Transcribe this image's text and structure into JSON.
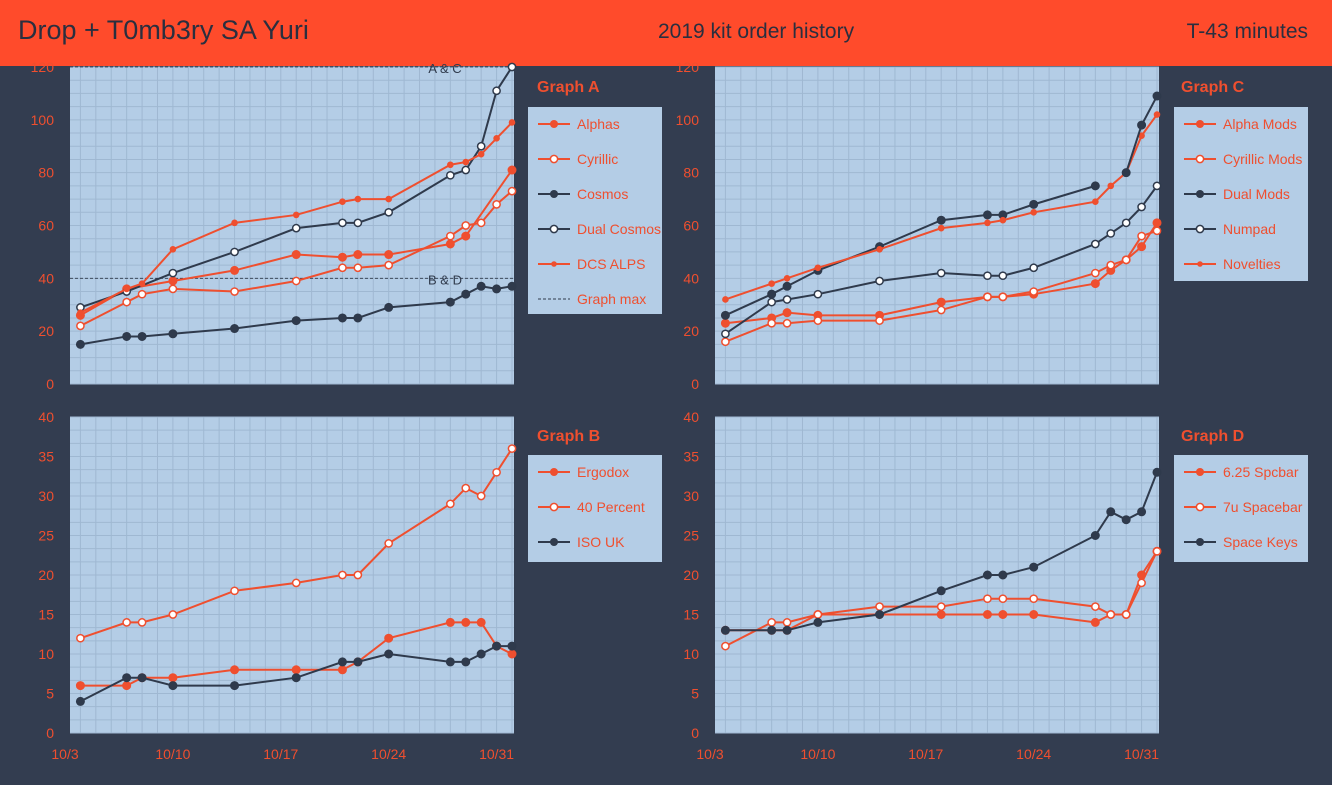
{
  "header": {
    "title": "Drop + T0mb3ry SA Yuri",
    "subtitle": "2019 kit order history",
    "countdown": "T-43 minutes"
  },
  "colors": {
    "background": "#333d50",
    "plot_bg": "#b4cde6",
    "header_bg": "#ff4b2b",
    "accent": "#ef4f2f",
    "dark": "#2f3a4c",
    "tick_text": "#ef4f2f"
  },
  "chart_data": [
    {
      "type": "line",
      "title": "Graph A",
      "x_type": "date",
      "x_ticks": [
        "10/3",
        "10/10",
        "10/17",
        "10/24",
        "10/31"
      ],
      "xlim": [
        "10/3",
        "11/1"
      ],
      "ylim": [
        0,
        120
      ],
      "y_ticks": [
        0,
        20,
        40,
        60,
        80,
        100,
        120
      ],
      "grid": true,
      "legend_position": "right",
      "reference_lines": [
        {
          "y": 120,
          "label": "A & C"
        },
        {
          "y": 40,
          "label": "B & D"
        }
      ],
      "series": [
        {
          "name": "Alphas",
          "color": "#ef4f2f",
          "marker": "filled",
          "x": [
            "10/4",
            "10/7",
            "10/10",
            "10/14",
            "10/18",
            "10/21",
            "10/22",
            "10/24",
            "10/28",
            "10/29",
            "11/1"
          ],
          "y": [
            26,
            36,
            39,
            43,
            49,
            48,
            49,
            49,
            53,
            56,
            81
          ]
        },
        {
          "name": "Cyrillic",
          "color": "#ef4f2f",
          "marker": "hollow",
          "x": [
            "10/4",
            "10/7",
            "10/8",
            "10/10",
            "10/14",
            "10/18",
            "10/21",
            "10/22",
            "10/24",
            "10/28",
            "10/29",
            "10/30",
            "10/31",
            "11/1"
          ],
          "y": [
            22,
            31,
            34,
            36,
            35,
            39,
            44,
            44,
            45,
            56,
            60,
            61,
            68,
            73
          ]
        },
        {
          "name": "Cosmos",
          "color": "#2f3a4c",
          "marker": "filled",
          "x": [
            "10/4",
            "10/7",
            "10/8",
            "10/10",
            "10/14",
            "10/18",
            "10/21",
            "10/22",
            "10/24",
            "10/28",
            "10/29",
            "10/30",
            "10/31",
            "11/1"
          ],
          "y": [
            15,
            18,
            18,
            19,
            21,
            24,
            25,
            25,
            29,
            31,
            34,
            37,
            36,
            37
          ]
        },
        {
          "name": "Dual Cosmos",
          "color": "#2f3a4c",
          "marker": "hollow",
          "x": [
            "10/4",
            "10/7",
            "10/10",
            "10/14",
            "10/18",
            "10/21",
            "10/22",
            "10/24",
            "10/28",
            "10/29",
            "10/30",
            "10/31",
            "11/1"
          ],
          "y": [
            29,
            35,
            42,
            50,
            59,
            61,
            61,
            65,
            79,
            81,
            90,
            111,
            120
          ]
        },
        {
          "name": "DCS ALPS",
          "color": "#ef4f2f",
          "marker": "dot",
          "x": [
            "10/4",
            "10/7",
            "10/8",
            "10/10",
            "10/14",
            "10/18",
            "10/21",
            "10/22",
            "10/24",
            "10/28",
            "10/29",
            "10/30",
            "10/31",
            "11/1"
          ],
          "y": [
            27,
            36,
            38,
            51,
            61,
            64,
            69,
            70,
            70,
            83,
            84,
            87,
            93,
            99
          ]
        },
        {
          "name": "Graph max",
          "color": "#2f3a4c",
          "marker": "none",
          "dashed": true,
          "x": [],
          "y": []
        }
      ]
    },
    {
      "type": "line",
      "title": "Graph C",
      "x_type": "date",
      "x_ticks": [
        "10/3",
        "10/10",
        "10/17",
        "10/24",
        "10/31"
      ],
      "xlim": [
        "10/3",
        "11/1"
      ],
      "ylim": [
        0,
        120
      ],
      "y_ticks": [
        0,
        20,
        40,
        60,
        80,
        100,
        120
      ],
      "grid": true,
      "legend_position": "right",
      "series": [
        {
          "name": "Alpha Mods",
          "color": "#ef4f2f",
          "marker": "filled",
          "x": [
            "10/4",
            "10/7",
            "10/8",
            "10/10",
            "10/14",
            "10/18",
            "10/21",
            "10/22",
            "10/24",
            "10/28",
            "10/29",
            "10/30",
            "10/31",
            "11/1"
          ],
          "y": [
            23,
            25,
            27,
            26,
            26,
            31,
            33,
            33,
            34,
            38,
            43,
            47,
            52,
            61
          ]
        },
        {
          "name": "Cyrillic Mods",
          "color": "#ef4f2f",
          "marker": "hollow",
          "x": [
            "10/4",
            "10/7",
            "10/8",
            "10/10",
            "10/14",
            "10/18",
            "10/21",
            "10/22",
            "10/24",
            "10/28",
            "10/29",
            "10/30",
            "10/31",
            "11/1"
          ],
          "y": [
            16,
            23,
            23,
            24,
            24,
            28,
            33,
            33,
            35,
            42,
            45,
            47,
            56,
            58
          ]
        },
        {
          "name": "Dual Mods",
          "color": "#2f3a4c",
          "marker": "filled",
          "x": [
            "10/4",
            "10/7",
            "10/8",
            "10/10",
            "10/14",
            "10/18",
            "10/21",
            "10/22",
            "10/24",
            "10/28"
          ],
          "y": [
            26,
            34,
            37,
            43,
            52,
            62,
            64,
            64,
            68,
            75
          ]
        },
        {
          "name": "Numpad",
          "color": "#2f3a4c",
          "marker": "hollow",
          "x": [
            "10/4",
            "10/7",
            "10/8",
            "10/10",
            "10/14",
            "10/18",
            "10/21",
            "10/22",
            "10/24",
            "10/28",
            "10/29",
            "10/30",
            "10/31",
            "11/1"
          ],
          "y": [
            19,
            31,
            32,
            34,
            39,
            42,
            41,
            41,
            44,
            53,
            57,
            61,
            67,
            75
          ]
        },
        {
          "name": "Novelties",
          "color": "#ef4f2f",
          "marker": "dot",
          "x": [
            "10/4",
            "10/7",
            "10/8",
            "10/10",
            "10/14",
            "10/18",
            "10/21",
            "10/22",
            "10/24",
            "10/28",
            "10/29",
            "10/30",
            "10/31",
            "11/1"
          ],
          "y": [
            32,
            38,
            40,
            44,
            51,
            59,
            61,
            62,
            65,
            69,
            75,
            80,
            94,
            102
          ]
        },
        {
          "name": "",
          "color": "#2f3a4c",
          "marker": "filled",
          "x": [
            "10/30",
            "10/31",
            "11/1"
          ],
          "y": [
            80,
            98,
            109
          ]
        }
      ]
    },
    {
      "type": "line",
      "title": "Graph B",
      "x_type": "date",
      "x_ticks": [
        "10/3",
        "10/10",
        "10/17",
        "10/24",
        "10/31"
      ],
      "xlim": [
        "10/3",
        "11/1"
      ],
      "ylim": [
        0,
        40
      ],
      "y_ticks": [
        0,
        5,
        10,
        15,
        20,
        25,
        30,
        35,
        40
      ],
      "grid": true,
      "legend_position": "right",
      "series": [
        {
          "name": "Ergodox",
          "color": "#ef4f2f",
          "marker": "filled",
          "x": [
            "10/4",
            "10/7",
            "10/8",
            "10/10",
            "10/14",
            "10/18",
            "10/21",
            "10/22",
            "10/24",
            "10/28",
            "10/29",
            "10/30",
            "10/31",
            "11/1"
          ],
          "y": [
            6,
            6,
            7,
            7,
            8,
            8,
            8,
            9,
            12,
            14,
            14,
            14,
            11,
            10
          ]
        },
        {
          "name": "40 Percent",
          "color": "#ef4f2f",
          "marker": "hollow",
          "x": [
            "10/4",
            "10/7",
            "10/8",
            "10/10",
            "10/14",
            "10/18",
            "10/21",
            "10/22",
            "10/24",
            "10/28",
            "10/29",
            "10/30",
            "10/31",
            "11/1"
          ],
          "y": [
            12,
            14,
            14,
            15,
            18,
            19,
            20,
            20,
            24,
            29,
            31,
            30,
            33,
            36
          ]
        },
        {
          "name": "ISO UK",
          "color": "#2f3a4c",
          "marker": "filled",
          "x": [
            "10/4",
            "10/7",
            "10/8",
            "10/10",
            "10/14",
            "10/18",
            "10/21",
            "10/22",
            "10/24",
            "10/28",
            "10/29",
            "10/30",
            "10/31",
            "11/1"
          ],
          "y": [
            4,
            7,
            7,
            6,
            6,
            7,
            9,
            9,
            10,
            9,
            9,
            10,
            11,
            11
          ]
        }
      ]
    },
    {
      "type": "line",
      "title": "Graph D",
      "x_type": "date",
      "x_ticks": [
        "10/3",
        "10/10",
        "10/17",
        "10/24",
        "10/31"
      ],
      "xlim": [
        "10/3",
        "11/1"
      ],
      "ylim": [
        0,
        40
      ],
      "y_ticks": [
        0,
        5,
        10,
        15,
        20,
        25,
        30,
        35,
        40
      ],
      "grid": true,
      "legend_position": "right",
      "series": [
        {
          "name": "6.25 Spcbar",
          "color": "#ef4f2f",
          "marker": "filled",
          "x": [
            "10/4",
            "10/7",
            "10/8",
            "10/10",
            "10/14",
            "10/18",
            "10/21",
            "10/22",
            "10/24",
            "10/28",
            "10/29",
            "10/30",
            "10/31",
            "11/1"
          ],
          "y": [
            13,
            13,
            13,
            15,
            15,
            15,
            15,
            15,
            15,
            14,
            15,
            15,
            20,
            23
          ]
        },
        {
          "name": "7u Spacebar",
          "color": "#ef4f2f",
          "marker": "hollow",
          "x": [
            "10/4",
            "10/7",
            "10/8",
            "10/10",
            "10/14",
            "10/18",
            "10/21",
            "10/22",
            "10/24",
            "10/28",
            "10/29",
            "10/30",
            "10/31",
            "11/1"
          ],
          "y": [
            11,
            14,
            14,
            15,
            16,
            16,
            17,
            17,
            17,
            16,
            15,
            15,
            19,
            23
          ]
        },
        {
          "name": "Space Keys",
          "color": "#2f3a4c",
          "marker": "filled",
          "x": [
            "10/4",
            "10/7",
            "10/8",
            "10/10",
            "10/14",
            "10/18",
            "10/21",
            "10/22",
            "10/24",
            "10/28",
            "10/29",
            "10/30",
            "10/31",
            "11/1"
          ],
          "y": [
            13,
            13,
            13,
            14,
            15,
            18,
            20,
            20,
            21,
            25,
            28,
            27,
            28,
            33
          ]
        }
      ]
    }
  ]
}
